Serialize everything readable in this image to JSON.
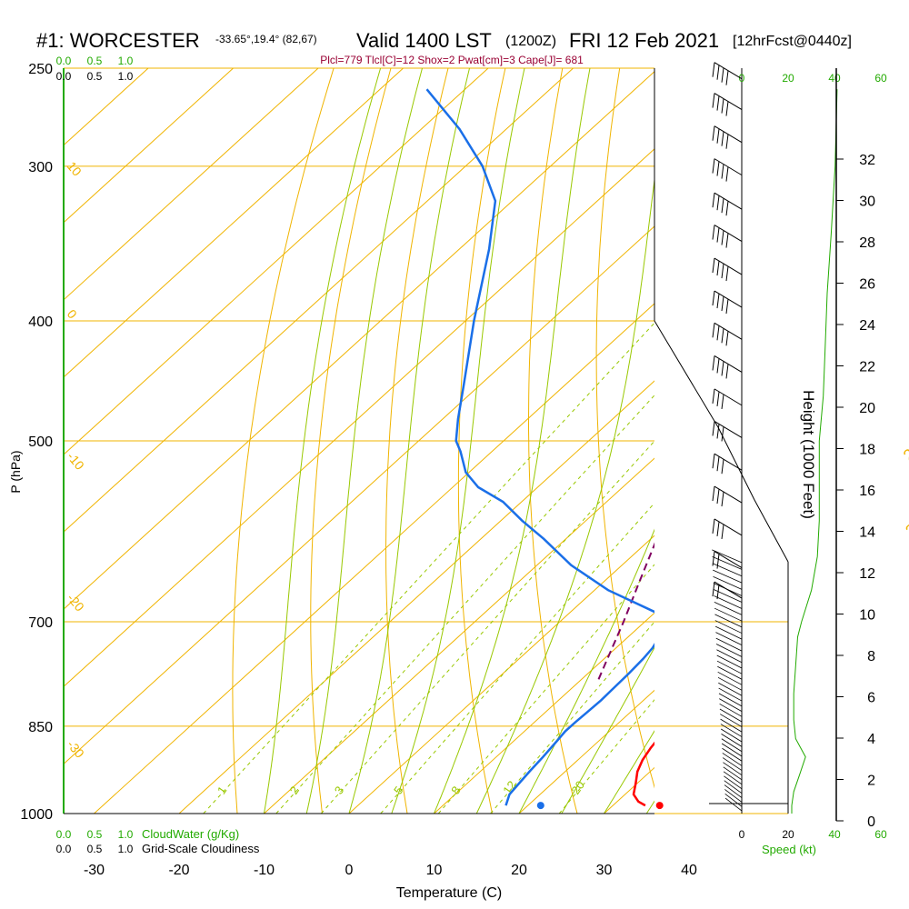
{
  "header": {
    "station": "#1: WORCESTER",
    "coords": "-33.65°,19.4° (82,67)",
    "valid": "Valid 1400 LST",
    "zulu": "(1200Z)",
    "date": "FRI 12 Feb 2021",
    "forecast": "[12hrFcst@0440z]",
    "indices": "Plcl=779 Tlcl[C]=12 Shox=2 Pwat[cm]=3 Cape[J]= 681"
  },
  "colors": {
    "isotherm": "#f0b400",
    "dry_adiabat": "#f0b400",
    "moist_adiabat": "#99c800",
    "mixing_ratio": "#99c800",
    "temperature": "#ff0000",
    "dewpoint": "#1a6fe8",
    "parcel": "#800060",
    "green_text": "#22aa00",
    "indices_text": "#990033"
  },
  "chart_data": {
    "type": "line",
    "title": "Skew-T log-P sounding",
    "xlabel": "Temperature (C)",
    "ylabel": "P (hPa)",
    "y2label": "Height (1000 Feet)",
    "x_ticks": [
      "-30",
      "-20",
      "-10",
      "0",
      "10",
      "20",
      "30",
      "40"
    ],
    "x_tick_values": [
      -30,
      -20,
      -10,
      0,
      10,
      20,
      30,
      40
    ],
    "p_ticks": [
      "250",
      "300",
      "400",
      "500",
      "700",
      "850",
      "1000"
    ],
    "p_tick_values": [
      250,
      300,
      400,
      500,
      700,
      850,
      1000
    ],
    "height_ticks": [
      "0",
      "2",
      "4",
      "6",
      "8",
      "10",
      "12",
      "14",
      "16",
      "18",
      "20",
      "22",
      "24",
      "26",
      "28",
      "30",
      "32"
    ],
    "height_tick_values": [
      0,
      2,
      4,
      6,
      8,
      10,
      12,
      14,
      16,
      18,
      20,
      22,
      24,
      26,
      28,
      30,
      32
    ],
    "isotherm_labels_left": [
      {
        "text": "10",
        "p": 300
      },
      {
        "text": "0",
        "p": 395
      },
      {
        "text": "-10",
        "p": 515
      },
      {
        "text": "-20",
        "p": 670
      },
      {
        "text": "-30",
        "p": 880
      }
    ],
    "isotherm_labels_right": [
      {
        "text": "0",
        "p": 345
      },
      {
        "text": "10",
        "p": 428
      },
      {
        "text": "20",
        "p": 520
      },
      {
        "text": "30",
        "p": 598
      }
    ],
    "mixing_ratio_labels": [
      "1",
      "2",
      "3",
      "5",
      "8",
      "12",
      "20"
    ],
    "mixing_ratio_values": [
      1,
      2,
      3,
      5,
      8,
      12,
      20
    ],
    "series": [
      {
        "name": "Temperature",
        "pressure": [
          985,
          978,
          965,
          945,
          925,
          905,
          885,
          870,
          858,
          848,
          835,
          820,
          800,
          780,
          760,
          740,
          720,
          700,
          680,
          660,
          620,
          580,
          550,
          520,
          500,
          480,
          450,
          420,
          400,
          380,
          350,
          320,
          300,
          280,
          260
        ],
        "values": [
          33.8,
          32.5,
          31.0,
          29.8,
          28.5,
          27.6,
          27.0,
          26.7,
          26.8,
          26.7,
          26.4,
          25.7,
          24.8,
          23.8,
          22.5,
          21.2,
          20.0,
          18.8,
          17.6,
          16.9,
          15.4,
          13.6,
          12.2,
          10.4,
          8.8,
          7.1,
          4.6,
          2.0,
          0.0,
          -2.7,
          -7.5,
          -13.3,
          -17.9,
          -23.5,
          -31.0
        ]
      },
      {
        "name": "Dewpoint",
        "pressure": [
          985,
          965,
          945,
          925,
          900,
          875,
          858,
          845,
          830,
          810,
          790,
          770,
          750,
          735,
          720,
          705,
          690,
          660,
          630,
          600,
          580,
          560,
          545,
          530,
          510,
          500,
          480,
          450,
          400,
          350,
          320,
          300,
          280,
          260
        ],
        "values": [
          17.4,
          16.4,
          16.1,
          15.8,
          15.5,
          15.1,
          14.8,
          14.8,
          14.9,
          15.0,
          14.9,
          14.8,
          14.6,
          14.3,
          13.7,
          12.4,
          10.7,
          1.6,
          -6.0,
          -12.6,
          -17.5,
          -22.2,
          -27.0,
          -30.4,
          -33.7,
          -35.6,
          -38.2,
          -42.0,
          -49.0,
          -56.5,
          -62.0,
          -68.0,
          -75.5,
          -84.5
        ]
      },
      {
        "name": "Parcel",
        "pressure": [
          779,
          750,
          700,
          650,
          600,
          560,
          520,
          500,
          480,
          450,
          420,
          400,
          370,
          340,
          310,
          280,
          260
        ],
        "values": [
          12.0,
          10.4,
          7.5,
          4.2,
          0.7,
          -2.6,
          -6.6,
          -8.5,
          -10.7,
          -14.5,
          -18.7,
          -21.7,
          -26.5,
          -32.0,
          -38.6,
          -46.0,
          -51.7
        ]
      }
    ],
    "surface_temperature": 35.5,
    "surface_dewpoint": 21.5,
    "cloud_axis": {
      "label": "CloudWater (g/Kg)",
      "ticks": [
        "0.0",
        "0.5",
        "1.0"
      ]
    },
    "cloudiness_axis": {
      "label": "Grid-Scale Cloudiness",
      "ticks": [
        "0.0",
        "0.5",
        "1.0"
      ]
    },
    "speed_axis": {
      "label": "Speed (kt)",
      "ticks": [
        "0",
        "20",
        "40",
        "60"
      ],
      "tick_values": [
        0,
        20,
        40,
        60
      ]
    },
    "wind_speed_kt": [
      {
        "p": 1000,
        "speed": 0
      },
      {
        "p": 985,
        "speed": 0
      },
      {
        "p": 960,
        "speed": 1
      },
      {
        "p": 930,
        "speed": 4
      },
      {
        "p": 900,
        "speed": 7
      },
      {
        "p": 870,
        "speed": 2
      },
      {
        "p": 840,
        "speed": 1
      },
      {
        "p": 800,
        "speed": 1
      },
      {
        "p": 760,
        "speed": 2
      },
      {
        "p": 720,
        "speed": 3
      },
      {
        "p": 700,
        "speed": 5
      },
      {
        "p": 660,
        "speed": 10
      },
      {
        "p": 620,
        "speed": 13
      },
      {
        "p": 580,
        "speed": 14
      },
      {
        "p": 540,
        "speed": 14
      },
      {
        "p": 500,
        "speed": 14
      },
      {
        "p": 460,
        "speed": 16
      },
      {
        "p": 420,
        "speed": 17
      },
      {
        "p": 380,
        "speed": 18
      },
      {
        "p": 340,
        "speed": 20
      },
      {
        "p": 300,
        "speed": 22
      },
      {
        "p": 260,
        "speed": 23
      }
    ],
    "wind_barb_pressures": [
      255,
      270,
      287,
      305,
      325,
      345,
      367,
      390,
      414,
      440,
      468,
      497,
      528,
      561,
      596,
      633,
      670
    ],
    "wind_speeds_upper_kt": [
      40,
      40,
      40,
      40,
      40,
      40,
      35,
      35,
      35,
      35,
      30,
      30,
      30,
      25,
      25,
      20,
      15
    ]
  }
}
